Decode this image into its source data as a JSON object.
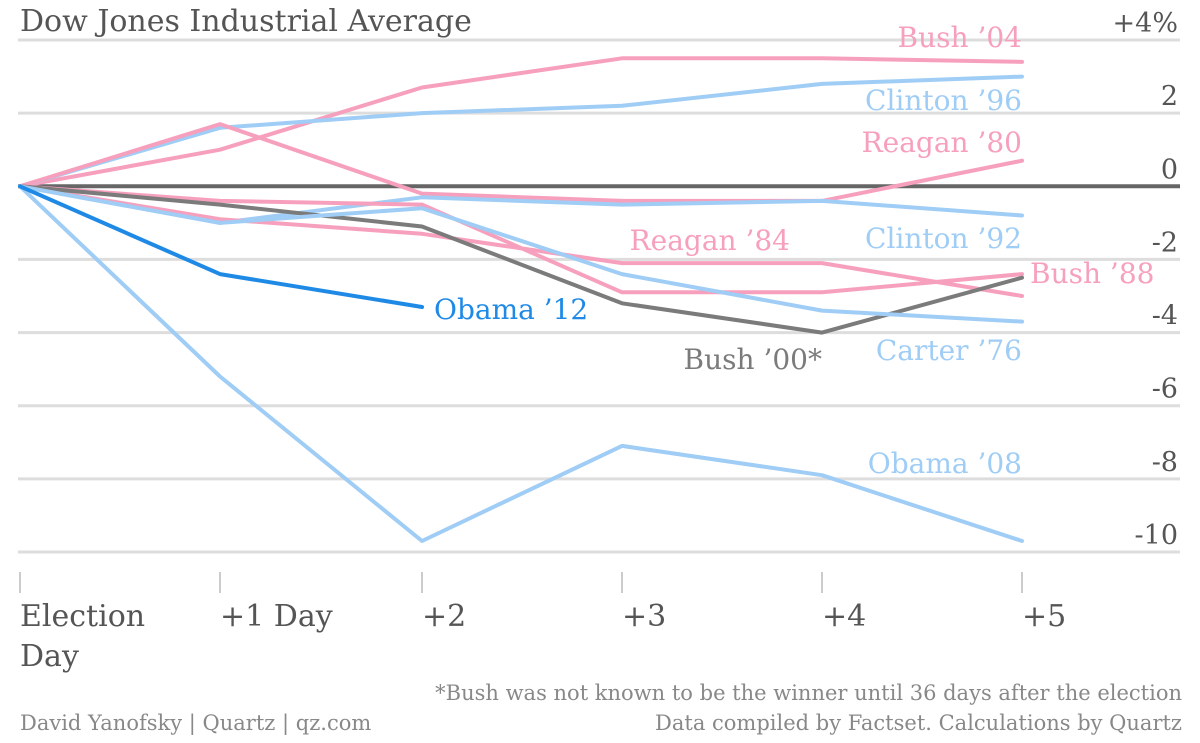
{
  "chart_data": {
    "type": "line",
    "title": "Dow Jones Industrial Average",
    "xlabel": "",
    "ylabel": "",
    "x_categories": [
      {
        "line1": "Election",
        "line2": "Day"
      },
      {
        "line1": "+1 Day",
        "line2": ""
      },
      {
        "line1": "+2",
        "line2": ""
      },
      {
        "line1": "+3",
        "line2": ""
      },
      {
        "line1": "+4",
        "line2": ""
      },
      {
        "line1": "+5",
        "line2": ""
      }
    ],
    "y_ticks": [
      {
        "value": 4,
        "label": "+4%"
      },
      {
        "value": 2,
        "label": "2"
      },
      {
        "value": 0,
        "label": "0"
      },
      {
        "value": -2,
        "label": "-2"
      },
      {
        "value": -4,
        "label": "-4"
      },
      {
        "value": -6,
        "label": "-6"
      },
      {
        "value": -8,
        "label": "-8"
      },
      {
        "value": -10,
        "label": "-10"
      }
    ],
    "ylim": [
      -10,
      4
    ],
    "grid": true,
    "zero_line": true,
    "series": [
      {
        "name": "Bush ’04",
        "color": "#f7a0bd",
        "values": [
          0,
          1.0,
          2.7,
          3.5,
          3.5,
          3.4
        ]
      },
      {
        "name": "Clinton ’96",
        "color": "#9fcdf5",
        "values": [
          0,
          1.6,
          2.0,
          2.2,
          2.8,
          3.0
        ]
      },
      {
        "name": "Reagan ’80",
        "color": "#f7a0bd",
        "values": [
          0,
          1.7,
          -0.2,
          -0.4,
          -0.4,
          0.7
        ]
      },
      {
        "name": "Clinton ’92",
        "color": "#9fcdf5",
        "values": [
          0,
          -1.0,
          -0.3,
          -0.5,
          -0.4,
          -0.8
        ]
      },
      {
        "name": "Reagan ’84",
        "color": "#f7a0bd",
        "values": [
          0,
          -0.9,
          -1.3,
          -2.1,
          -2.1,
          -3.0
        ]
      },
      {
        "name": "Bush ’88",
        "color": "#f7a0bd",
        "values": [
          0,
          -0.4,
          -0.5,
          -2.9,
          -2.9,
          -2.4
        ]
      },
      {
        "name": "Bush ’00*",
        "color": "#7b7b7b",
        "values": [
          0,
          -0.5,
          -1.1,
          -3.2,
          -4.0,
          -2.5
        ]
      },
      {
        "name": "Carter ’76",
        "color": "#9fcdf5",
        "values": [
          0,
          -1.0,
          -0.6,
          -2.4,
          -3.4,
          -3.7
        ]
      },
      {
        "name": "Obama ’12",
        "color": "#1f8ae6",
        "values": [
          0,
          -2.4,
          -3.3
        ]
      },
      {
        "name": "Obama ’08",
        "color": "#9fcdf5",
        "values": [
          0,
          -5.2,
          -9.7,
          -7.1,
          -7.9,
          -9.7
        ]
      }
    ],
    "footnote": "*Bush was not known to be the winner until 36 days after the election",
    "credit": "David Yanofsky | Quartz | qz.com",
    "source": "Data compiled by Factset. Calculations by Quartz"
  }
}
